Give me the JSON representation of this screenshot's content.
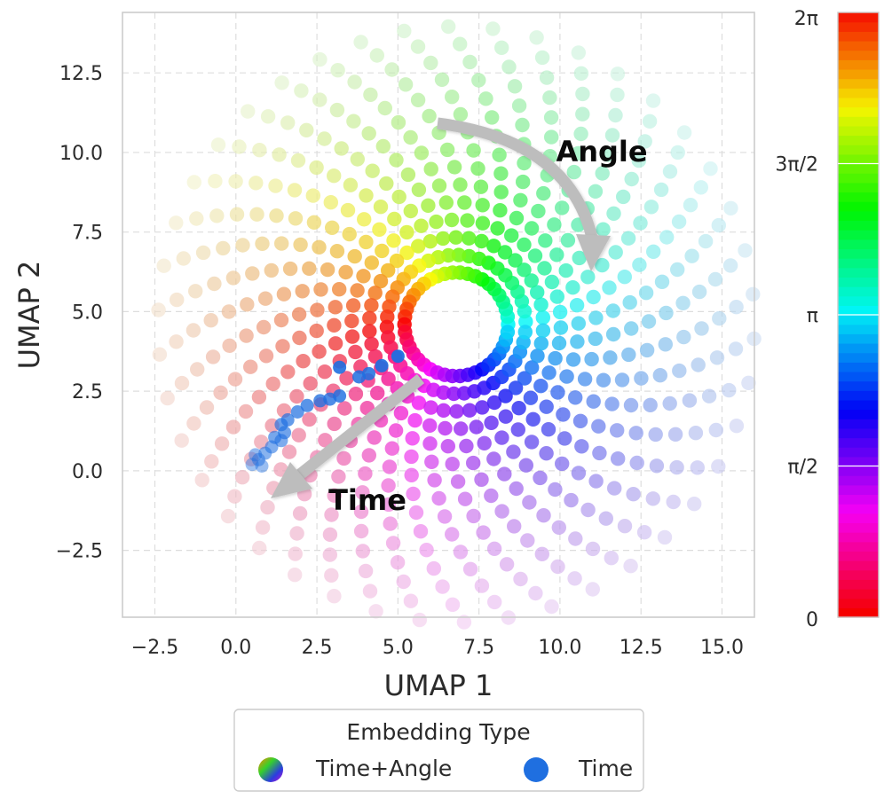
{
  "chart_data": {
    "type": "scatter",
    "title": "",
    "xlabel": "UMAP 1",
    "ylabel": "UMAP 2",
    "xlim": [
      -3.5,
      16.0
    ],
    "ylim": [
      -4.6,
      14.4
    ],
    "x_ticks": [
      -2.5,
      0.0,
      2.5,
      5.0,
      7.5,
      10.0,
      12.5,
      15.0
    ],
    "x_tick_labels": [
      "−2.5",
      "0.0",
      "2.5",
      "5.0",
      "7.5",
      "10.0",
      "12.5",
      "15.0"
    ],
    "y_ticks": [
      -2.5,
      0.0,
      2.5,
      5.0,
      7.5,
      10.0,
      12.5
    ],
    "y_tick_labels": [
      "−2.5",
      "0.0",
      "2.5",
      "5.0",
      "7.5",
      "10.0",
      "12.5"
    ],
    "grid": true,
    "grid_style": "dashed",
    "series": [
      {
        "name": "Time+Angle",
        "pattern": "spiral-disc",
        "center": [
          6.8,
          4.6
        ],
        "inner_radius": 1.6,
        "outer_radius": 9.2,
        "arms": 42,
        "points_per_arm": 15,
        "color_by": "angle",
        "color_scale": "hsv",
        "opacity_by": "time"
      },
      {
        "name": "Time",
        "color": "#1f6fe0",
        "points": [
          {
            "x": 5.0,
            "y": 3.6
          },
          {
            "x": 4.5,
            "y": 3.3
          },
          {
            "x": 3.2,
            "y": 3.25
          },
          {
            "x": 4.1,
            "y": 3.05
          },
          {
            "x": 3.8,
            "y": 2.95
          },
          {
            "x": 3.2,
            "y": 2.35
          },
          {
            "x": 2.9,
            "y": 2.25
          },
          {
            "x": 2.6,
            "y": 2.2
          },
          {
            "x": 2.2,
            "y": 2.05
          },
          {
            "x": 1.9,
            "y": 1.85
          },
          {
            "x": 1.6,
            "y": 1.6
          },
          {
            "x": 1.4,
            "y": 1.45
          },
          {
            "x": 1.5,
            "y": 1.2
          },
          {
            "x": 1.2,
            "y": 1.05
          },
          {
            "x": 1.4,
            "y": 0.95
          },
          {
            "x": 1.1,
            "y": 0.75
          },
          {
            "x": 0.9,
            "y": 0.55
          },
          {
            "x": 0.7,
            "y": 0.35
          },
          {
            "x": 0.6,
            "y": 0.5
          },
          {
            "x": 0.8,
            "y": 0.15
          },
          {
            "x": 0.5,
            "y": 0.2
          }
        ]
      }
    ],
    "annotations": [
      {
        "text": "Angle",
        "arrow": "curved",
        "arrow_from": [
          6.3,
          10.9
        ],
        "arrow_to": [
          11.0,
          6.9
        ],
        "text_at": [
          10.4,
          10.0
        ]
      },
      {
        "text": "Time",
        "arrow": "straight",
        "arrow_from": [
          5.8,
          2.9
        ],
        "arrow_to": [
          1.0,
          -0.9
        ],
        "text_at": [
          3.1,
          -1.0
        ]
      }
    ],
    "colorbar": {
      "label": "",
      "range": [
        0,
        6.2832
      ],
      "ticks": [
        0,
        1.5708,
        3.1416,
        4.7124,
        6.2832
      ],
      "tick_labels": [
        "0",
        "π/2",
        "π",
        "3π/2",
        "2π"
      ],
      "color_scale": "hsv",
      "levels": 64
    },
    "legend": {
      "title": "Embedding Type",
      "placement": "bottom",
      "entries": [
        "Time+Angle",
        "Time"
      ]
    }
  },
  "colors": {
    "grid": "#dddddd",
    "axes_frame": "#cccccc",
    "tick_text": "#2b2b2b",
    "arrow": "#bdbdbd",
    "time_series": "#1f6fe0"
  }
}
